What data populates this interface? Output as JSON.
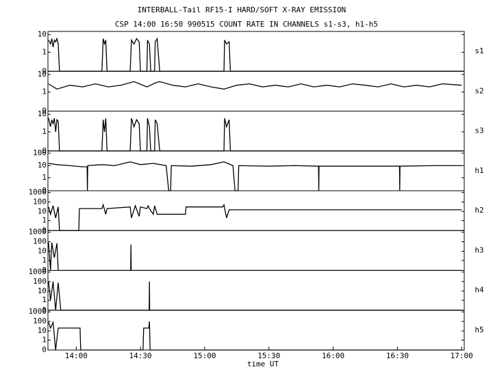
{
  "title": "INTERBALL-Tail RF15-I HARD/SOFT X-RAY EMISSION",
  "subtitle": "CSP 14:00 16:50 990515  COUNT RATE IN CHANNELS s1-s3, h1-h5",
  "chart_data": [
    {
      "type": "line",
      "label": "s1",
      "color": "#000",
      "yscale": "log",
      "xlim": [
        13.78,
        17.02
      ],
      "ylim": [
        0,
        15
      ],
      "yticks": [
        0,
        1,
        10
      ],
      "x": [
        13.785,
        13.8,
        13.81,
        13.82,
        13.83,
        13.84,
        13.85,
        13.86,
        13.87,
        14.2,
        14.21,
        14.22,
        14.23,
        14.24,
        14.42,
        14.43,
        14.45,
        14.47,
        14.49,
        14.5,
        14.55,
        14.555,
        14.57,
        14.58,
        14.61,
        14.615,
        14.63,
        14.65,
        15.15,
        15.155,
        15.17,
        15.19,
        15.2,
        17.0
      ],
      "values": [
        5,
        3,
        6,
        2,
        5,
        4,
        6,
        3,
        0,
        0,
        6,
        3,
        5,
        0,
        0,
        5,
        3,
        6,
        4,
        0,
        0,
        5,
        3,
        0,
        0,
        4,
        6,
        0,
        0,
        5,
        3,
        4,
        0,
        0
      ]
    },
    {
      "type": "line",
      "label": "s2",
      "color": "#000",
      "yscale": "log",
      "xlim": [
        13.78,
        17.02
      ],
      "ylim": [
        0,
        15
      ],
      "yticks": [
        0,
        1,
        10
      ],
      "x": [
        13.785,
        13.85,
        13.95,
        14.05,
        14.15,
        14.25,
        14.35,
        14.45,
        14.55,
        14.62,
        14.65,
        14.75,
        14.85,
        14.95,
        15.05,
        15.15,
        15.25,
        15.35,
        15.45,
        15.55,
        15.65,
        15.75,
        15.85,
        15.95,
        16.05,
        16.15,
        16.25,
        16.35,
        16.45,
        16.55,
        16.65,
        16.75,
        16.85,
        17.0
      ],
      "values": [
        3,
        1.5,
        2.5,
        2,
        3,
        2,
        2.5,
        4,
        2,
        3.5,
        4,
        2.5,
        2,
        3,
        2,
        1.5,
        2.5,
        3,
        2,
        2.5,
        2,
        3,
        2,
        2.5,
        2,
        3,
        2.5,
        2,
        3,
        2,
        2.5,
        2,
        3,
        2.5
      ]
    },
    {
      "type": "line",
      "label": "s3",
      "color": "#000",
      "yscale": "log",
      "xlim": [
        13.78,
        17.02
      ],
      "ylim": [
        0,
        15
      ],
      "yticks": [
        0,
        1,
        10
      ],
      "x": [
        13.785,
        13.8,
        13.81,
        13.82,
        13.83,
        13.84,
        13.85,
        13.86,
        13.87,
        14.2,
        14.21,
        14.22,
        14.23,
        14.24,
        14.42,
        14.43,
        14.45,
        14.47,
        14.49,
        14.5,
        14.55,
        14.555,
        14.57,
        14.58,
        14.61,
        14.615,
        14.63,
        14.65,
        15.15,
        15.155,
        15.17,
        15.19,
        15.2,
        17.0
      ],
      "values": [
        6,
        2,
        5,
        3,
        6,
        1,
        5,
        4,
        0,
        0,
        5,
        1,
        6,
        0,
        0,
        6,
        2,
        5,
        3,
        0,
        0,
        6,
        2,
        0,
        0,
        5,
        3,
        0,
        0,
        6,
        2,
        5,
        0,
        0
      ]
    },
    {
      "type": "line",
      "label": "h1",
      "color": "#000",
      "yscale": "log",
      "xlim": [
        13.78,
        17.02
      ],
      "ylim": [
        0,
        150
      ],
      "yticks": [
        0,
        1,
        10,
        100
      ],
      "x": [
        13.785,
        13.85,
        13.95,
        14.05,
        14.085,
        14.087,
        14.09,
        14.2,
        14.3,
        14.42,
        14.5,
        14.6,
        14.7,
        14.72,
        14.735,
        14.74,
        14.9,
        15.05,
        15.15,
        15.22,
        15.236,
        15.26,
        15.265,
        15.5,
        15.7,
        15.886,
        15.888,
        15.89,
        16.2,
        16.516,
        16.518,
        16.52,
        16.8,
        17.0
      ],
      "values": [
        15,
        12,
        10,
        8,
        8,
        0,
        10,
        12,
        10,
        20,
        12,
        15,
        10,
        0,
        0,
        10,
        9,
        12,
        20,
        10,
        0,
        0,
        10,
        9,
        10,
        9,
        0,
        9,
        9,
        9,
        0,
        9,
        10,
        10
      ]
    },
    {
      "type": "line",
      "label": "h2",
      "color": "#000",
      "yscale": "log",
      "xlim": [
        13.78,
        17.02
      ],
      "ylim": [
        0,
        1500
      ],
      "yticks": [
        0,
        1,
        10,
        100,
        1000
      ],
      "x": [
        13.785,
        13.8,
        13.82,
        13.84,
        13.86,
        13.87,
        14.02,
        14.025,
        14.2,
        14.21,
        14.23,
        14.24,
        14.42,
        14.43,
        14.46,
        14.49,
        14.5,
        14.55,
        14.56,
        14.57,
        14.6,
        14.61,
        14.63,
        14.85,
        14.855,
        15.14,
        15.15,
        15.17,
        15.19,
        17.0
      ],
      "values": [
        30,
        5,
        40,
        2,
        30,
        0,
        0,
        20,
        20,
        50,
        5,
        20,
        30,
        2,
        40,
        3,
        30,
        20,
        40,
        20,
        5,
        40,
        5,
        5,
        30,
        30,
        50,
        2,
        15,
        15
      ]
    },
    {
      "type": "line",
      "label": "h3",
      "color": "#000",
      "yscale": "log",
      "xlim": [
        13.78,
        17.02
      ],
      "ylim": [
        0,
        1500
      ],
      "yticks": [
        0,
        1,
        10,
        100,
        1000
      ],
      "x": [
        13.785,
        13.8,
        13.81,
        13.83,
        13.85,
        13.86,
        14.424,
        14.426,
        14.428,
        17.0
      ],
      "values": [
        80,
        0,
        80,
        2,
        70,
        0,
        0,
        50,
        0,
        0
      ]
    },
    {
      "type": "line",
      "label": "h4",
      "color": "#000",
      "yscale": "log",
      "xlim": [
        13.78,
        17.02
      ],
      "ylim": [
        0,
        1500
      ],
      "yticks": [
        0,
        1,
        10,
        100,
        1000
      ],
      "x": [
        13.785,
        13.8,
        13.82,
        13.84,
        13.86,
        13.88,
        14.568,
        14.57,
        14.572,
        17.0
      ],
      "values": [
        100,
        1,
        100,
        0,
        80,
        0,
        0,
        100,
        0,
        0
      ]
    },
    {
      "type": "line",
      "label": "h5",
      "color": "#000",
      "yscale": "log",
      "xlim": [
        13.78,
        17.02
      ],
      "ylim": [
        0,
        1500
      ],
      "yticks": [
        0,
        1,
        10,
        100,
        1000
      ],
      "x": [
        13.785,
        13.8,
        13.82,
        13.84,
        13.86,
        14.03,
        14.035,
        14.52,
        14.525,
        14.565,
        14.57,
        14.575,
        17.0
      ],
      "values": [
        80,
        20,
        80,
        0,
        20,
        20,
        0,
        0,
        20,
        20,
        100,
        0,
        0
      ],
      "xlabel": "time UT",
      "xticks": [
        {
          "value": 14,
          "label": "14:00"
        },
        {
          "value": 14.5,
          "label": "14:30"
        },
        {
          "value": 15,
          "label": "15:00"
        },
        {
          "value": 15.5,
          "label": "15:30"
        },
        {
          "value": 16,
          "label": "16:00"
        },
        {
          "value": 16.5,
          "label": "16:30"
        },
        {
          "value": 17,
          "label": "17:00"
        }
      ]
    }
  ]
}
